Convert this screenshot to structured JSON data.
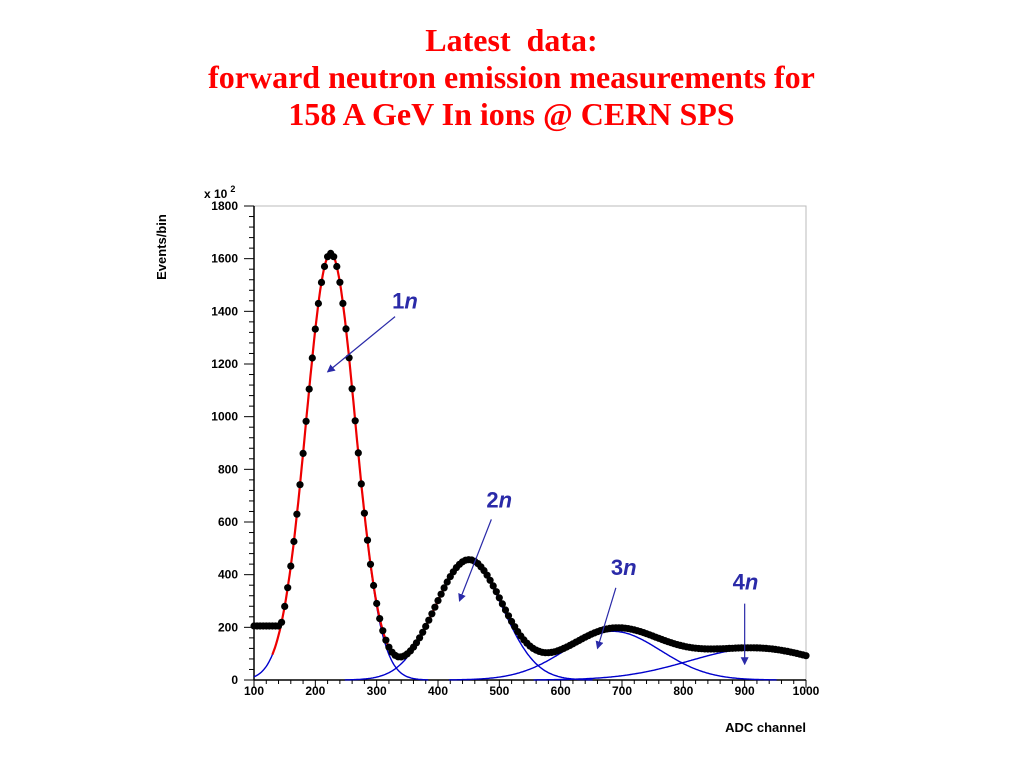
{
  "slide": {
    "title_lines": [
      "Latest  data:",
      "forward neutron emission measurements for",
      "158 A GeV In ions @ CERN SPS"
    ]
  },
  "chart_data": {
    "type": "line",
    "xlabel": "ADC channel",
    "ylabel": "Events/bin",
    "y_multiplier_label": "x 10",
    "y_multiplier_exp": "2",
    "xlim": [
      100,
      1000
    ],
    "ylim": [
      0,
      1800
    ],
    "x_ticks": [
      100,
      200,
      300,
      400,
      500,
      600,
      700,
      800,
      900,
      1000
    ],
    "y_ticks": [
      0,
      200,
      400,
      600,
      800,
      1000,
      1200,
      1400,
      1600,
      1800
    ],
    "grid": false,
    "components": [
      {
        "label_num": "1",
        "label_italic": "n",
        "mean": 225,
        "amplitude": 1620,
        "sigma": 40
      },
      {
        "label_num": "2",
        "label_italic": "n",
        "mean": 450,
        "amplitude": 455,
        "sigma": 55
      },
      {
        "label_num": "3",
        "label_italic": "n",
        "mean": 685,
        "amplitude": 185,
        "sigma": 78
      },
      {
        "label_num": "4",
        "label_italic": "n",
        "mean": 920,
        "amplitude": 120,
        "sigma": 110
      }
    ],
    "annotations": [
      {
        "component": 0,
        "arrow_tip": [
          220,
          1170
        ],
        "arrow_tail": [
          330,
          1380
        ]
      },
      {
        "component": 1,
        "arrow_tip": [
          435,
          300
        ],
        "arrow_tail": [
          487,
          610
        ]
      },
      {
        "component": 2,
        "arrow_tip": [
          660,
          120
        ],
        "arrow_tail": [
          690,
          350
        ]
      },
      {
        "component": 3,
        "arrow_tip": [
          900,
          60
        ],
        "arrow_tail": [
          900,
          290
        ]
      }
    ],
    "colors": {
      "data": "#000000",
      "components": "#0000cc",
      "total_fit": "#ee0000",
      "labels": "#2a2aa8",
      "frame": "#bbbbbb",
      "title": "#ff0000"
    }
  }
}
